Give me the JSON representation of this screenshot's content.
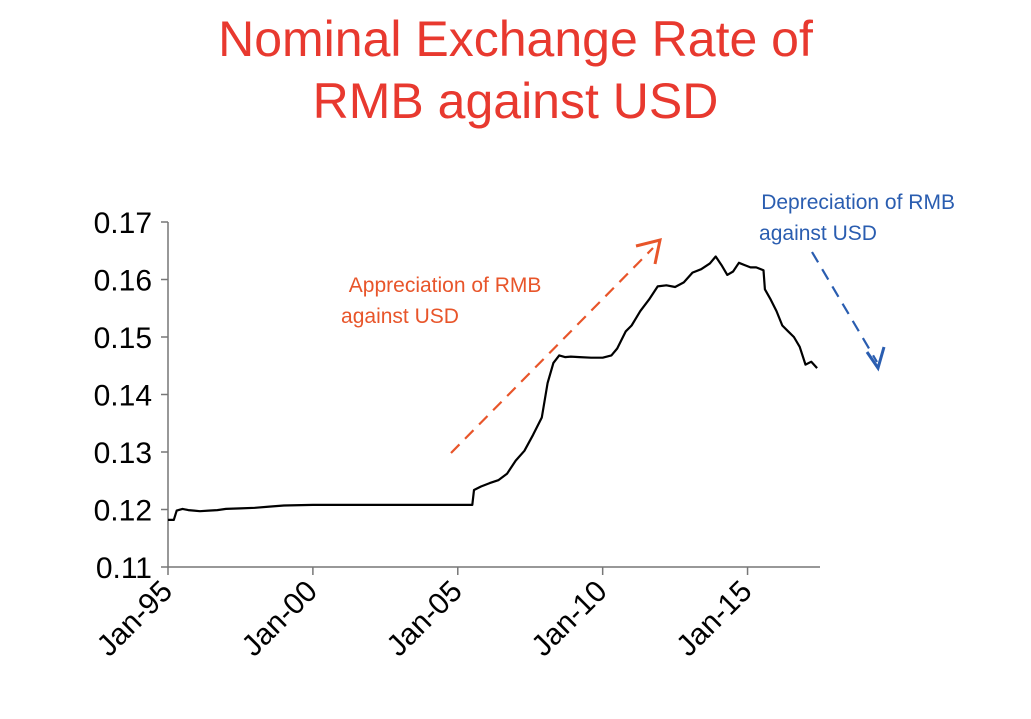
{
  "colors": {
    "title": "#e8392f",
    "appreciation": "#e8552a",
    "depreciation": "#2a5db0",
    "line": "#000000"
  },
  "chart_data": {
    "type": "line",
    "title_lines": [
      "Nominal Exchange Rate of",
      "RMB against USD"
    ],
    "xlabel": "",
    "ylabel": "",
    "xlim": [
      1995.0,
      2017.5
    ],
    "ylim": [
      0.11,
      0.17
    ],
    "y_ticks": [
      "0.11",
      "0.12",
      "0.13",
      "0.14",
      "0.15",
      "0.16",
      "0.17"
    ],
    "y_tick_values": [
      0.11,
      0.12,
      0.13,
      0.14,
      0.15,
      0.16,
      0.17
    ],
    "x_ticks": [
      "Jan-95",
      "Jan-00",
      "Jan-05",
      "Jan-10",
      "Jan-15"
    ],
    "x_tick_values": [
      1995,
      2000,
      2005,
      2010,
      2015
    ],
    "grid": false,
    "series": [
      {
        "x": [
          1995.0,
          1995.2,
          1995.3,
          1995.5,
          1995.7,
          1995.9,
          1996.1,
          1996.4,
          1996.7,
          1997.0,
          1997.5,
          1998.0,
          1998.5,
          1999.0,
          2000.0,
          2001.0,
          2002.0,
          2003.0,
          2004.0,
          2005.0,
          2005.5,
          2005.56,
          2005.8,
          2006.1,
          2006.4,
          2006.7,
          2007.0,
          2007.3,
          2007.6,
          2007.9,
          2008.1,
          2008.3,
          2008.5,
          2008.7,
          2008.9,
          2009.2,
          2009.6,
          2010.0,
          2010.3,
          2010.5,
          2010.8,
          2011.0,
          2011.3,
          2011.6,
          2011.9,
          2012.2,
          2012.5,
          2012.8,
          2013.1,
          2013.4,
          2013.7,
          2013.9,
          2014.1,
          2014.3,
          2014.5,
          2014.7,
          2014.9,
          2015.1,
          2015.3,
          2015.55,
          2015.6,
          2015.8,
          2016.0,
          2016.2,
          2016.4,
          2016.6,
          2016.8,
          2017.0,
          2017.2,
          2017.4
        ],
        "y": [
          0.1182,
          0.1182,
          0.1198,
          0.1201,
          0.1199,
          0.1198,
          0.1197,
          0.1198,
          0.1199,
          0.1201,
          0.1202,
          0.1203,
          0.1205,
          0.1207,
          0.1208,
          0.1208,
          0.1208,
          0.1208,
          0.1208,
          0.1208,
          0.1208,
          0.1234,
          0.124,
          0.1246,
          0.1251,
          0.1262,
          0.1285,
          0.1302,
          0.133,
          0.136,
          0.142,
          0.1455,
          0.1468,
          0.1465,
          0.1466,
          0.1465,
          0.1464,
          0.1464,
          0.1468,
          0.148,
          0.151,
          0.152,
          0.1545,
          0.1565,
          0.1588,
          0.159,
          0.1587,
          0.1595,
          0.1612,
          0.1618,
          0.1628,
          0.164,
          0.1625,
          0.1608,
          0.1614,
          0.1629,
          0.1625,
          0.1621,
          0.1621,
          0.1616,
          0.1583,
          0.1565,
          0.1545,
          0.152,
          0.151,
          0.15,
          0.1483,
          0.1452,
          0.1457,
          0.1446
        ]
      }
    ],
    "annotations": [
      {
        "lines": [
          "Appreciation of RMB",
          "against USD"
        ],
        "color": "#e8552a",
        "arrow": "dashed, pointing up-right"
      },
      {
        "lines": [
          "Depreciation of RMB",
          "against USD"
        ],
        "color": "#2a5db0",
        "arrow": "dashed, pointing down-right"
      }
    ]
  }
}
